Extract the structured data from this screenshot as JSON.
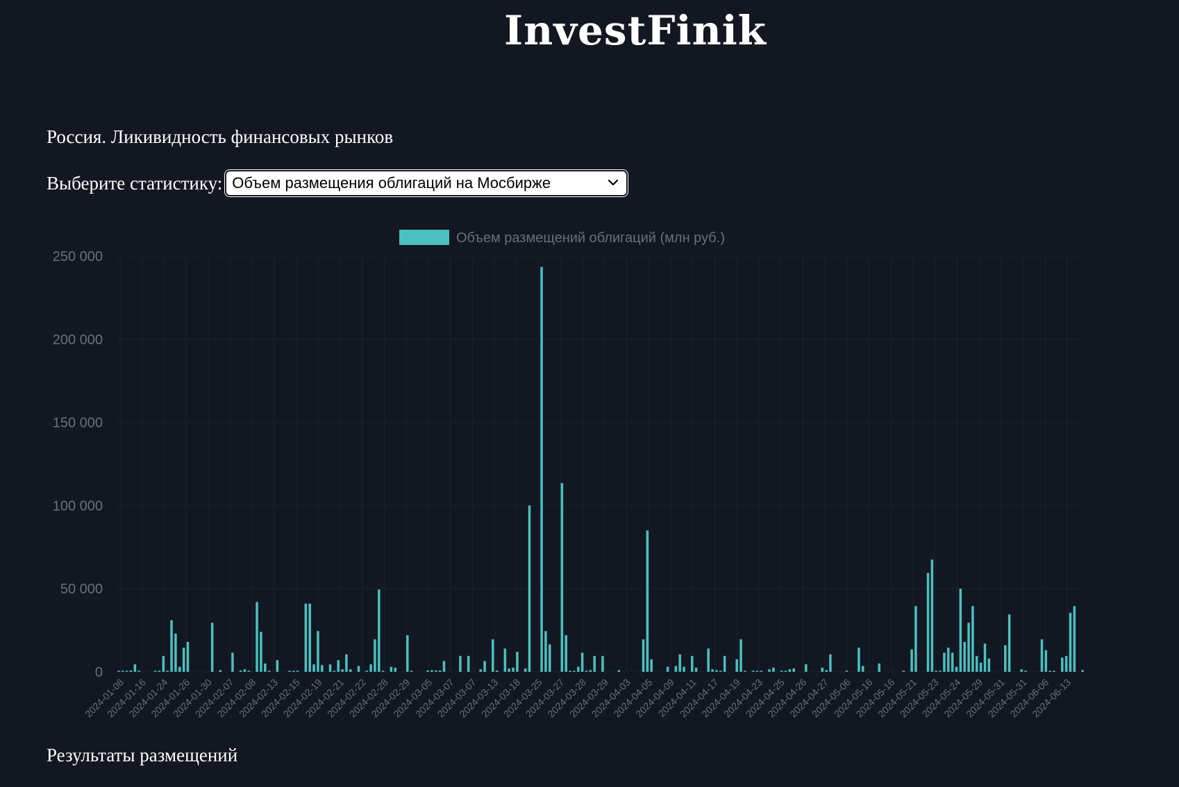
{
  "header": {
    "logo": "InvestFinik"
  },
  "page": {
    "subtitle": "Россия. Ликивидность финансовых рынков",
    "select_label": "Выберите статистику:",
    "select_value": "Объем размещения облигаций на Мосбирже",
    "results_heading": "Результаты размещений"
  },
  "colors": {
    "background": "#131722",
    "bar": "#4bc0c0",
    "axis_text": "#6b6f77",
    "grid": "#1c212b"
  },
  "chart_data": {
    "type": "bar",
    "legend": "Объем размещений облигаций (млн руб.)",
    "legend_position": "top",
    "ylim": [
      0,
      250000
    ],
    "y_ticks": [
      0,
      50000,
      100000,
      150000,
      200000,
      250000
    ],
    "y_tick_labels": [
      "0",
      "50 000",
      "100 000",
      "150 000",
      "200 000",
      "250 000"
    ],
    "x_tick_labels": [
      "2024-01-08",
      "2024-01-16",
      "2024-01-24",
      "2024-01-26",
      "2024-01-30",
      "2024-02-07",
      "2024-02-08",
      "2024-02-13",
      "2024-02-15",
      "2024-02-19",
      "2024-02-21",
      "2024-02-22",
      "2024-02-28",
      "2024-02-29",
      "2024-03-05",
      "2024-03-07",
      "2024-03-07",
      "2024-03-13",
      "2024-03-18",
      "2024-03-25",
      "2024-03-27",
      "2024-03-28",
      "2024-03-29",
      "2024-04-03",
      "2024-04-05",
      "2024-04-09",
      "2024-04-11",
      "2024-04-17",
      "2024-04-19",
      "2024-04-23",
      "2024-04-25",
      "2024-04-26",
      "2024-04-27",
      "2024-05-06",
      "2024-05-16",
      "2024-05-16",
      "2024-05-21",
      "2024-05-23",
      "2024-05-24",
      "2024-05-29",
      "2024-05-31",
      "2024-05-31",
      "2024-06-06",
      "2024-06-13"
    ],
    "grid": true,
    "values": [
      500,
      500,
      500,
      800,
      4500,
      500,
      0,
      0,
      0,
      300,
      500,
      9500,
      500,
      31000,
      23000,
      3000,
      14500,
      18000,
      0,
      0,
      0,
      0,
      0,
      29500,
      0,
      1000,
      0,
      0,
      11500,
      0,
      800,
      1500,
      500,
      0,
      42000,
      24000,
      5000,
      500,
      0,
      7000,
      0,
      0,
      500,
      500,
      500,
      0,
      41000,
      41000,
      4500,
      24500,
      4000,
      0,
      4500,
      500,
      7000,
      1500,
      10500,
      1500,
      0,
      3500,
      0,
      500,
      4500,
      19500,
      49500,
      500,
      0,
      3000,
      2500,
      0,
      0,
      22000,
      500,
      0,
      0,
      0,
      800,
      1000,
      800,
      800,
      6500,
      0,
      0,
      0,
      9500,
      0,
      9500,
      0,
      0,
      1500,
      6500,
      0,
      19500,
      800,
      0,
      14000,
      2000,
      2500,
      12000,
      0,
      2000,
      100000,
      0,
      0,
      243500,
      24500,
      16500,
      0,
      0,
      113500,
      22000,
      500,
      500,
      3000,
      11500,
      500,
      1000,
      9500,
      0,
      9500,
      0,
      0,
      0,
      1000,
      0,
      0,
      0,
      0,
      0,
      19500,
      85000,
      7500,
      0,
      0,
      0,
      3000,
      0,
      3500,
      10500,
      3000,
      0,
      9500,
      2500,
      0,
      0,
      14000,
      1500,
      1000,
      500,
      9500,
      0,
      0,
      7500,
      19500,
      500,
      0,
      500,
      500,
      500,
      0,
      1500,
      2500,
      0,
      500,
      500,
      1500,
      2000,
      0,
      0,
      4500,
      0,
      0,
      0,
      2500,
      1000,
      10500,
      0,
      0,
      0,
      500,
      0,
      0,
      14500,
      3500,
      0,
      0,
      0,
      5000,
      0,
      0,
      0,
      0,
      0,
      500,
      0,
      13500,
      39500,
      0,
      0,
      59500,
      67500,
      500,
      500,
      11500,
      14500,
      11500,
      3000,
      50000,
      18000,
      29500,
      39500,
      9500,
      5500,
      17000,
      8000,
      0,
      0,
      0,
      16000,
      34500,
      0,
      0,
      1500,
      500,
      0,
      0,
      0,
      19500,
      13000,
      500,
      500,
      0,
      8500,
      9500,
      35500,
      39500,
      0,
      1000
    ]
  }
}
